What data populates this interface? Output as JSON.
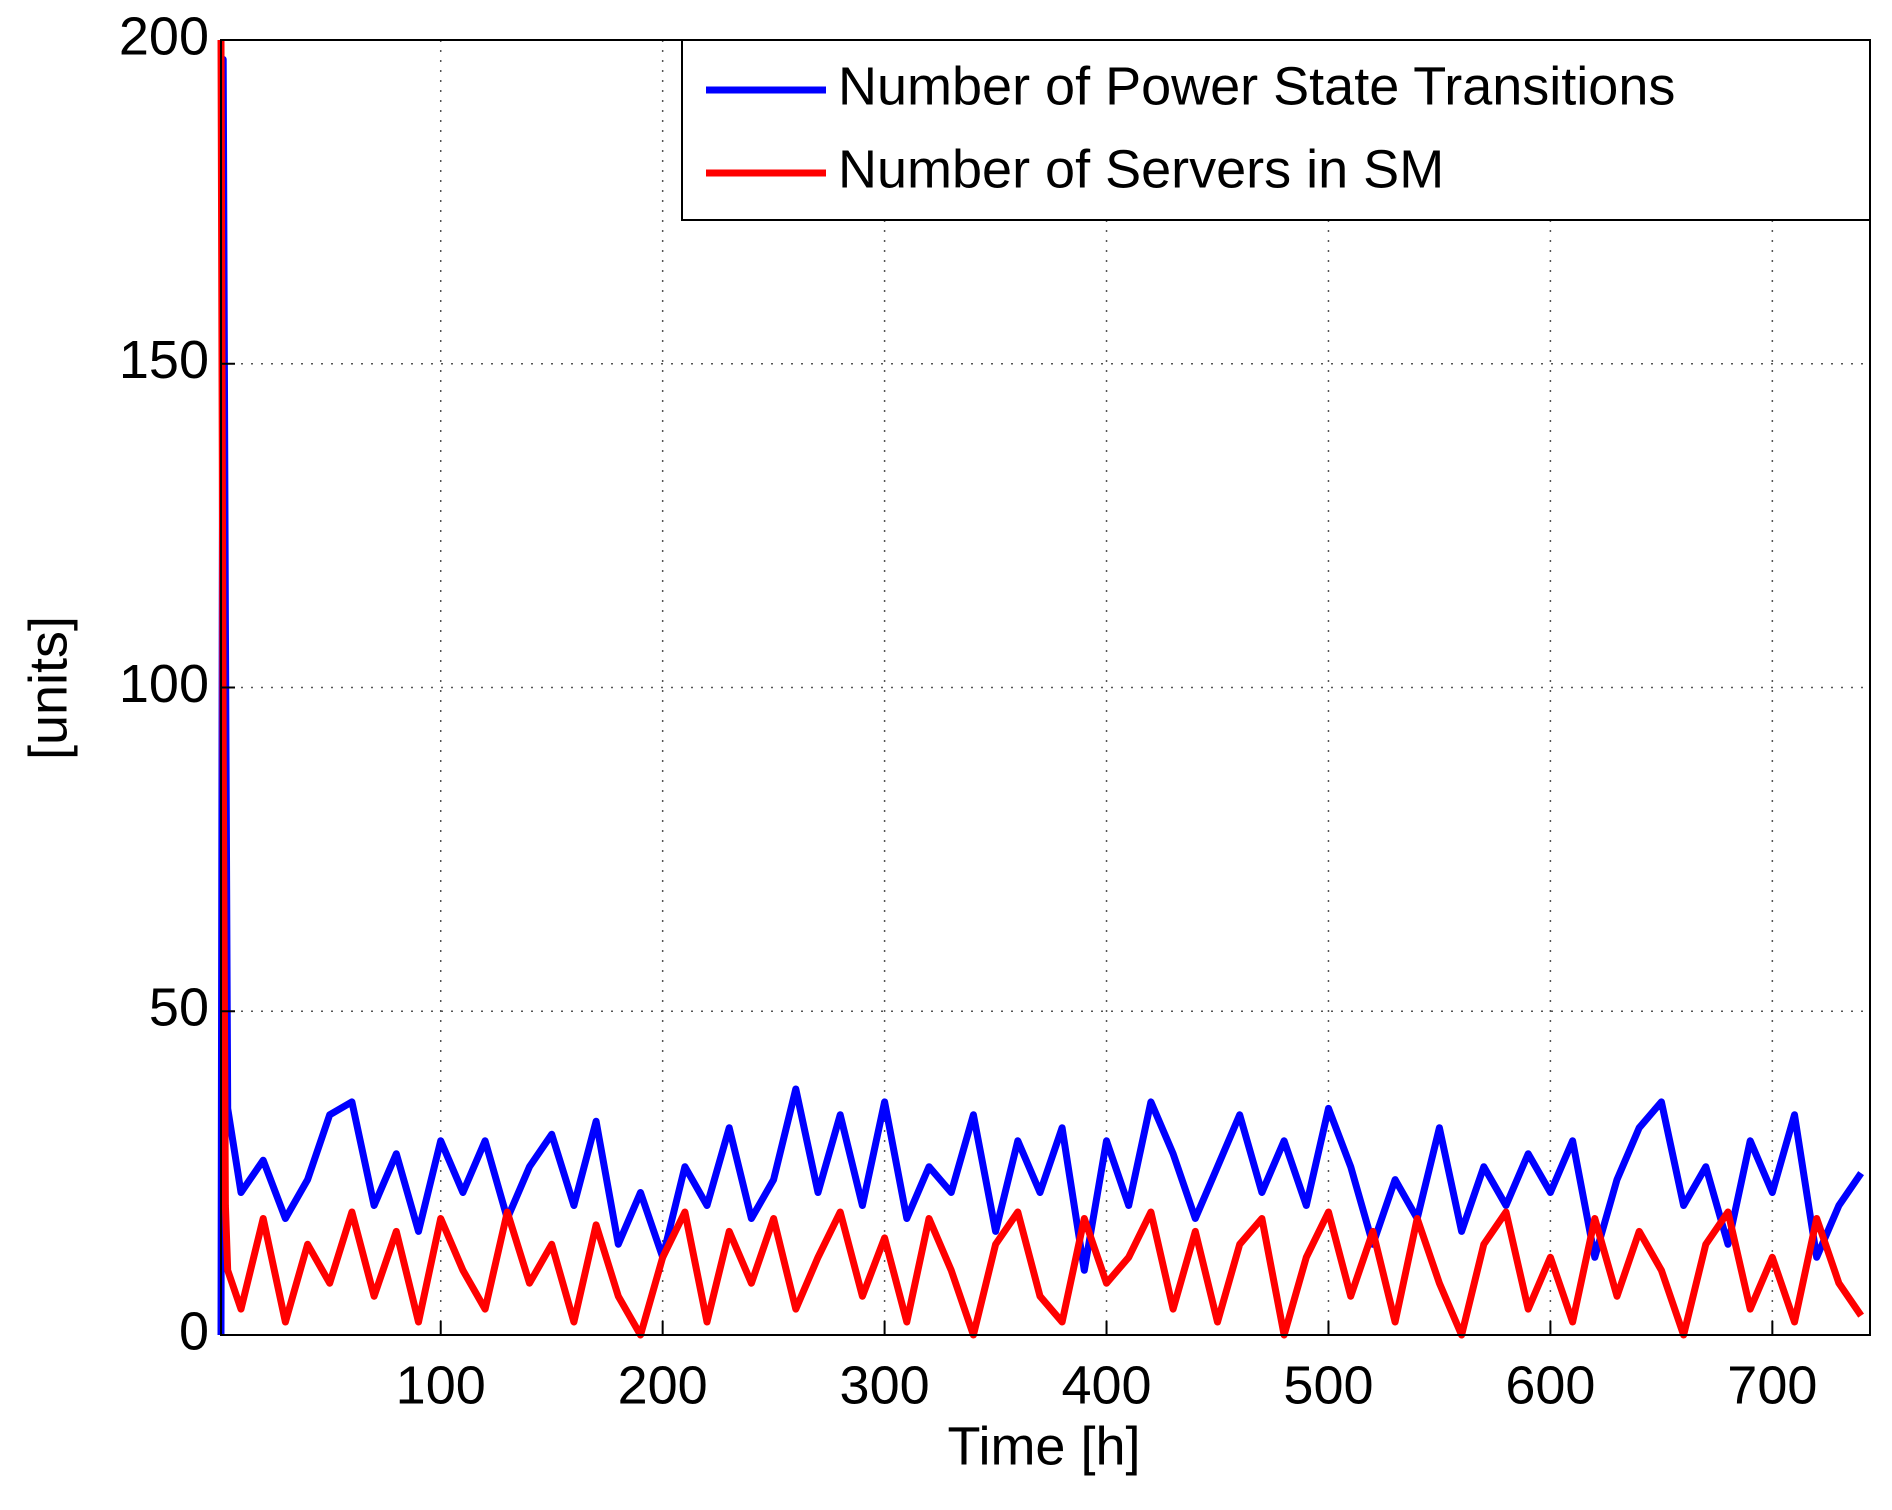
{
  "chart_data": {
    "type": "line",
    "x_label": "Time [h]",
    "y_label": "[units]",
    "xlim": [
      1,
      744
    ],
    "ylim": [
      0,
      200
    ],
    "xticks": [
      100,
      200,
      300,
      400,
      500,
      600,
      700
    ],
    "yticks": [
      0,
      50,
      100,
      150,
      200
    ],
    "grid": true,
    "legend": "upper right",
    "x": [
      1,
      2,
      3,
      4,
      10,
      20,
      30,
      40,
      50,
      60,
      70,
      80,
      90,
      100,
      110,
      120,
      130,
      140,
      150,
      160,
      170,
      180,
      190,
      200,
      210,
      220,
      230,
      240,
      250,
      260,
      270,
      280,
      290,
      300,
      310,
      320,
      330,
      340,
      350,
      360,
      370,
      380,
      390,
      400,
      410,
      420,
      430,
      440,
      450,
      460,
      470,
      480,
      490,
      500,
      510,
      520,
      530,
      540,
      550,
      560,
      570,
      580,
      590,
      600,
      610,
      620,
      630,
      640,
      650,
      660,
      670,
      680,
      690,
      700,
      710,
      720,
      730,
      740
    ],
    "series": [
      {
        "name": "Number of Power State Transitions",
        "color": "#0000ff",
        "values": [
          0,
          197,
          110,
          35,
          22,
          27,
          18,
          24,
          34,
          36,
          20,
          28,
          16,
          30,
          22,
          30,
          18,
          26,
          31,
          20,
          33,
          14,
          22,
          12,
          26,
          20,
          32,
          18,
          24,
          38,
          22,
          34,
          20,
          36,
          18,
          26,
          22,
          34,
          16,
          30,
          22,
          32,
          10,
          30,
          20,
          36,
          28,
          18,
          26,
          34,
          22,
          30,
          20,
          35,
          26,
          14,
          24,
          18,
          32,
          16,
          26,
          20,
          28,
          22,
          30,
          12,
          24,
          32,
          36,
          20,
          26,
          14,
          30,
          22,
          34,
          12,
          20,
          25
        ]
      },
      {
        "name": "Number of Servers in SM",
        "color": "#ff0000",
        "values": [
          200,
          90,
          20,
          10,
          4,
          18,
          2,
          14,
          8,
          19,
          6,
          16,
          2,
          18,
          10,
          4,
          19,
          8,
          14,
          2,
          17,
          6,
          0,
          12,
          19,
          2,
          16,
          8,
          18,
          4,
          12,
          19,
          6,
          15,
          2,
          18,
          10,
          0,
          14,
          19,
          6,
          2,
          18,
          8,
          12,
          19,
          4,
          16,
          2,
          14,
          18,
          0,
          12,
          19,
          6,
          16,
          2,
          18,
          8,
          0,
          14,
          19,
          4,
          12,
          2,
          18,
          6,
          16,
          10,
          0,
          14,
          19,
          4,
          12,
          2,
          18,
          8,
          3
        ]
      }
    ]
  }
}
